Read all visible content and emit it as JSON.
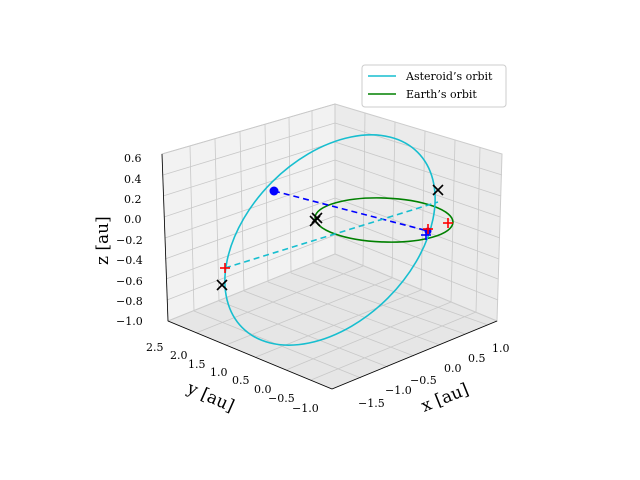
{
  "chart_data": {
    "type": "line-3d",
    "xlabel": "x [au]",
    "ylabel": "y [au]",
    "zlabel": "z [au]",
    "x_ticks": [
      "−1.5",
      "−1.0",
      "−0.5",
      "0.0",
      "0.5",
      "1.0"
    ],
    "y_ticks": [
      "2.5",
      "2.0",
      "1.5",
      "1.0",
      "0.5",
      "0.0",
      "−0.5",
      "−1.0"
    ],
    "z_ticks": [
      "0.6",
      "0.4",
      "0.2",
      "0.0",
      "−0.2",
      "−0.4",
      "−0.6",
      "−0.8",
      "−1.0"
    ],
    "xlim": [
      -1.7,
      1.2
    ],
    "ylim": [
      -1.1,
      2.6
    ],
    "zlim": [
      -1.0,
      0.6
    ],
    "grid": true,
    "legend_position": "top-right",
    "series": [
      {
        "name": "Asteroid’s orbit",
        "color": "#17becf"
      },
      {
        "name": "Earth’s orbit",
        "color": "#008000"
      }
    ],
    "markers": {
      "x_marks_color": "#000000",
      "plus_marks_color": "#ff0000",
      "dot_color": "#0000ff",
      "plus_blue_color": "#0000ff"
    }
  }
}
